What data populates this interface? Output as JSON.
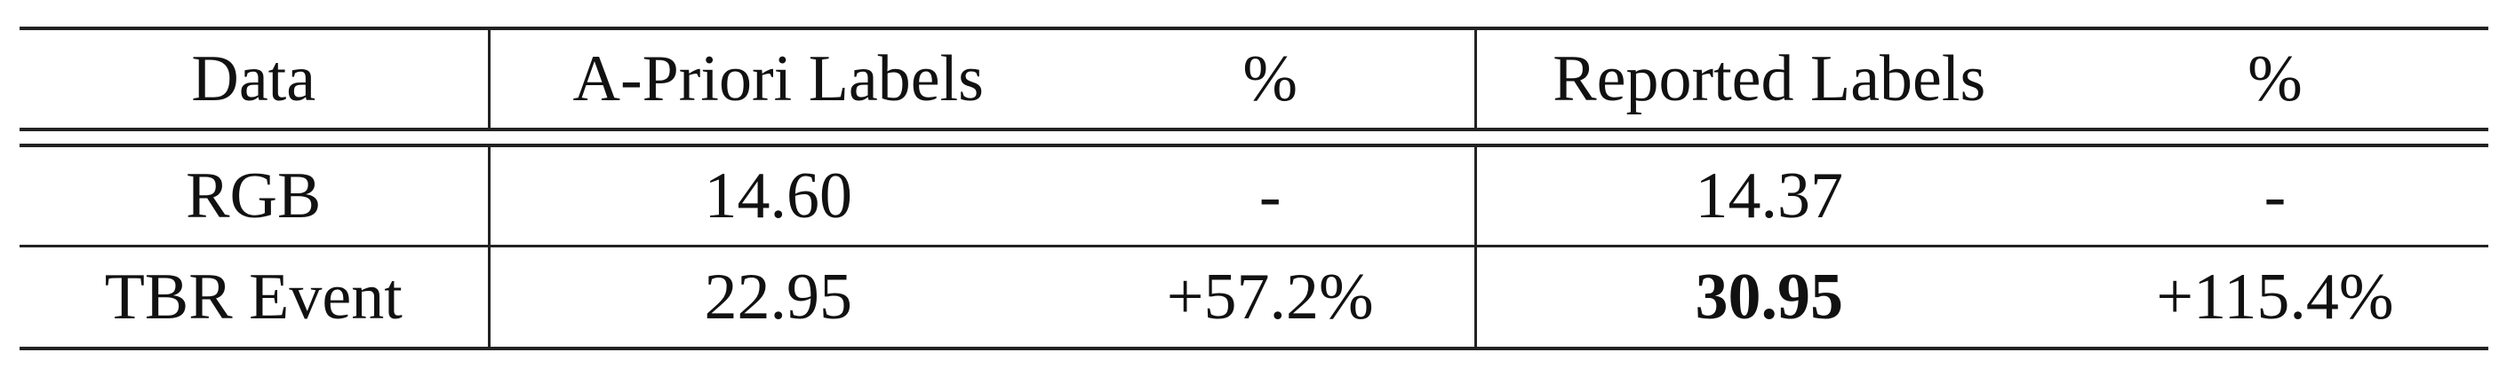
{
  "table": {
    "headers": [
      "Data",
      "A-Priori Labels",
      "%",
      "Reported Labels",
      "%"
    ],
    "rows": [
      [
        "RGB",
        "14.60",
        "-",
        "14.37",
        "-"
      ],
      [
        "TBR Event",
        "22.95",
        "+57.2%",
        "30.95",
        "+115.4%"
      ]
    ],
    "bold_cells": [
      [
        1,
        3
      ]
    ]
  }
}
